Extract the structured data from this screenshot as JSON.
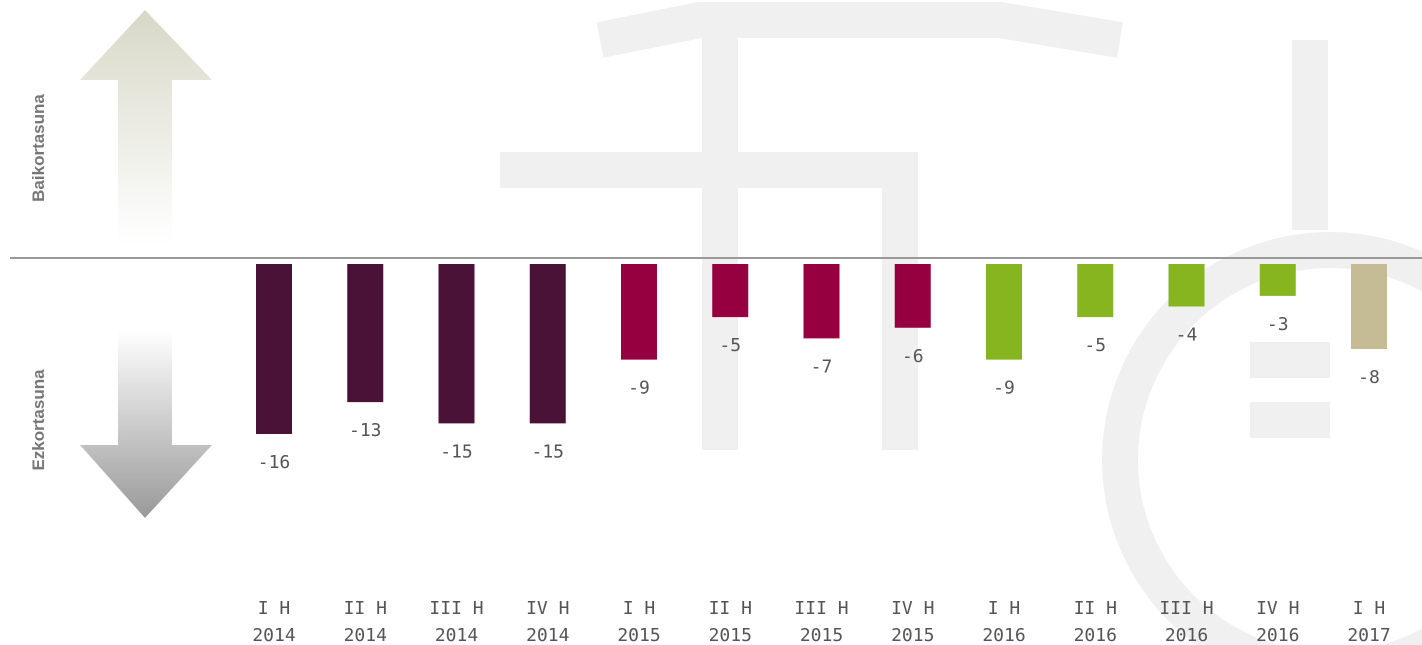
{
  "chart_data": {
    "type": "bar",
    "axis_labels": {
      "positive": "Baikortasuna",
      "negative": "Ezkortasuna"
    },
    "categories": [
      [
        "I H",
        "2014"
      ],
      [
        "II H",
        "2014"
      ],
      [
        "III H",
        "2014"
      ],
      [
        "IV H",
        "2014"
      ],
      [
        "I H",
        "2015"
      ],
      [
        "II H",
        "2015"
      ],
      [
        "III H",
        "2015"
      ],
      [
        "IV H",
        "2015"
      ],
      [
        "I H",
        "2016"
      ],
      [
        "II H",
        "2016"
      ],
      [
        "III H",
        "2016"
      ],
      [
        "IV H",
        "2016"
      ],
      [
        "I H",
        "2017"
      ]
    ],
    "values": [
      -16,
      -13,
      -15,
      -15,
      -9,
      -5,
      -7,
      -6,
      -9,
      -5,
      -4,
      -3,
      -8
    ],
    "colors": [
      "#4b1238",
      "#4b1238",
      "#4b1238",
      "#4b1238",
      "#960040",
      "#960040",
      "#960040",
      "#960040",
      "#86b520",
      "#86b520",
      "#86b520",
      "#86b520",
      "#c5bc96"
    ]
  }
}
